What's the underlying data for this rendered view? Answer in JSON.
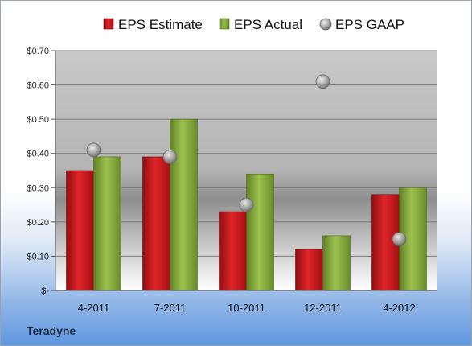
{
  "company": "Teradyne",
  "colors": {
    "estimate": "#c8141a",
    "actual": "#86aa3c",
    "gaap": "#9a9a9a"
  },
  "chart_data": {
    "type": "bar",
    "categories": [
      "4-2011",
      "7-2011",
      "10-2011",
      "12-2011",
      "4-2012"
    ],
    "series": [
      {
        "name": "EPS Estimate",
        "type": "bar",
        "values": [
          0.35,
          0.39,
          0.23,
          0.12,
          0.28
        ]
      },
      {
        "name": "EPS Actual",
        "type": "bar",
        "values": [
          0.39,
          0.5,
          0.34,
          0.16,
          0.3
        ]
      },
      {
        "name": "EPS GAAP",
        "type": "scatter",
        "values": [
          0.41,
          0.39,
          0.25,
          0.61,
          0.15
        ]
      }
    ],
    "ylim": [
      0,
      0.7
    ],
    "yticks": [
      0,
      0.1,
      0.2,
      0.3,
      0.4,
      0.5,
      0.6,
      0.7
    ],
    "ytick_labels": [
      "$-",
      "$0.10",
      "$0.20",
      "$0.30",
      "$0.40",
      "$0.50",
      "$0.60",
      "$0.70"
    ],
    "legend_position": "top",
    "grid": true
  }
}
